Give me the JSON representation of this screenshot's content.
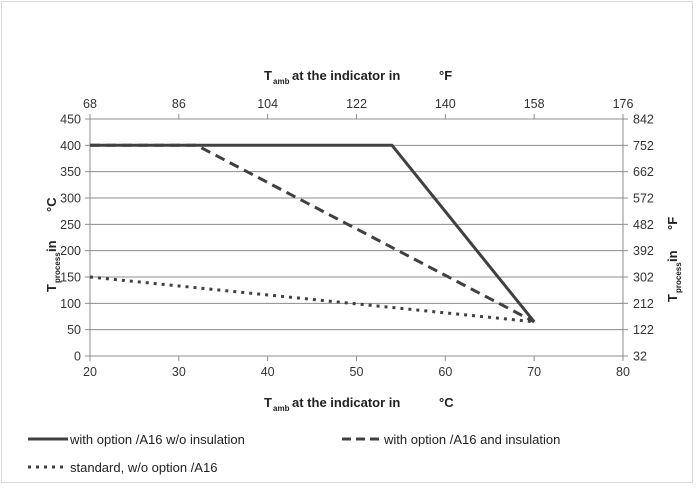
{
  "chart_data": {
    "type": "line",
    "x_axis": {
      "main": "T",
      "sub": "amb",
      "rest": "at the indicator in",
      "unit": "°C",
      "ticks": [
        20,
        30,
        40,
        50,
        60,
        70,
        80
      ],
      "range": [
        20,
        80
      ]
    },
    "x_axis_top": {
      "main": "T",
      "sub": "amb",
      "rest": "at the indicator in",
      "unit": "°F",
      "ticks": [
        "68",
        "86",
        "104",
        "122",
        "140",
        "158",
        "176"
      ]
    },
    "y_axis": {
      "main": "T",
      "sub": "process",
      "rest": "in",
      "unit": "°C",
      "ticks": [
        0,
        50,
        100,
        150,
        200,
        250,
        300,
        350,
        400,
        450
      ],
      "range": [
        0,
        450
      ]
    },
    "y_axis_right": {
      "main": "T",
      "sub": "process",
      "rest": "in",
      "unit": "°F",
      "ticks": [
        "32",
        "122",
        "212",
        "302",
        "392",
        "482",
        "572",
        "662",
        "752",
        "842"
      ]
    },
    "grid": true,
    "legend_position": "bottom",
    "series": [
      {
        "name": "with option /A16 w/o insulation",
        "style": "solid",
        "color": "#404040",
        "points": [
          [
            20,
            400
          ],
          [
            54,
            400
          ],
          [
            70,
            65
          ]
        ]
      },
      {
        "name": "with option /A16 and insulation",
        "style": "dashed",
        "color": "#404040",
        "points": [
          [
            20,
            400
          ],
          [
            32,
            400
          ],
          [
            70,
            65
          ]
        ]
      },
      {
        "name": "standard, w/o option /A16",
        "style": "dotted",
        "color": "#404040",
        "points": [
          [
            20,
            150
          ],
          [
            70,
            65
          ]
        ]
      }
    ]
  }
}
